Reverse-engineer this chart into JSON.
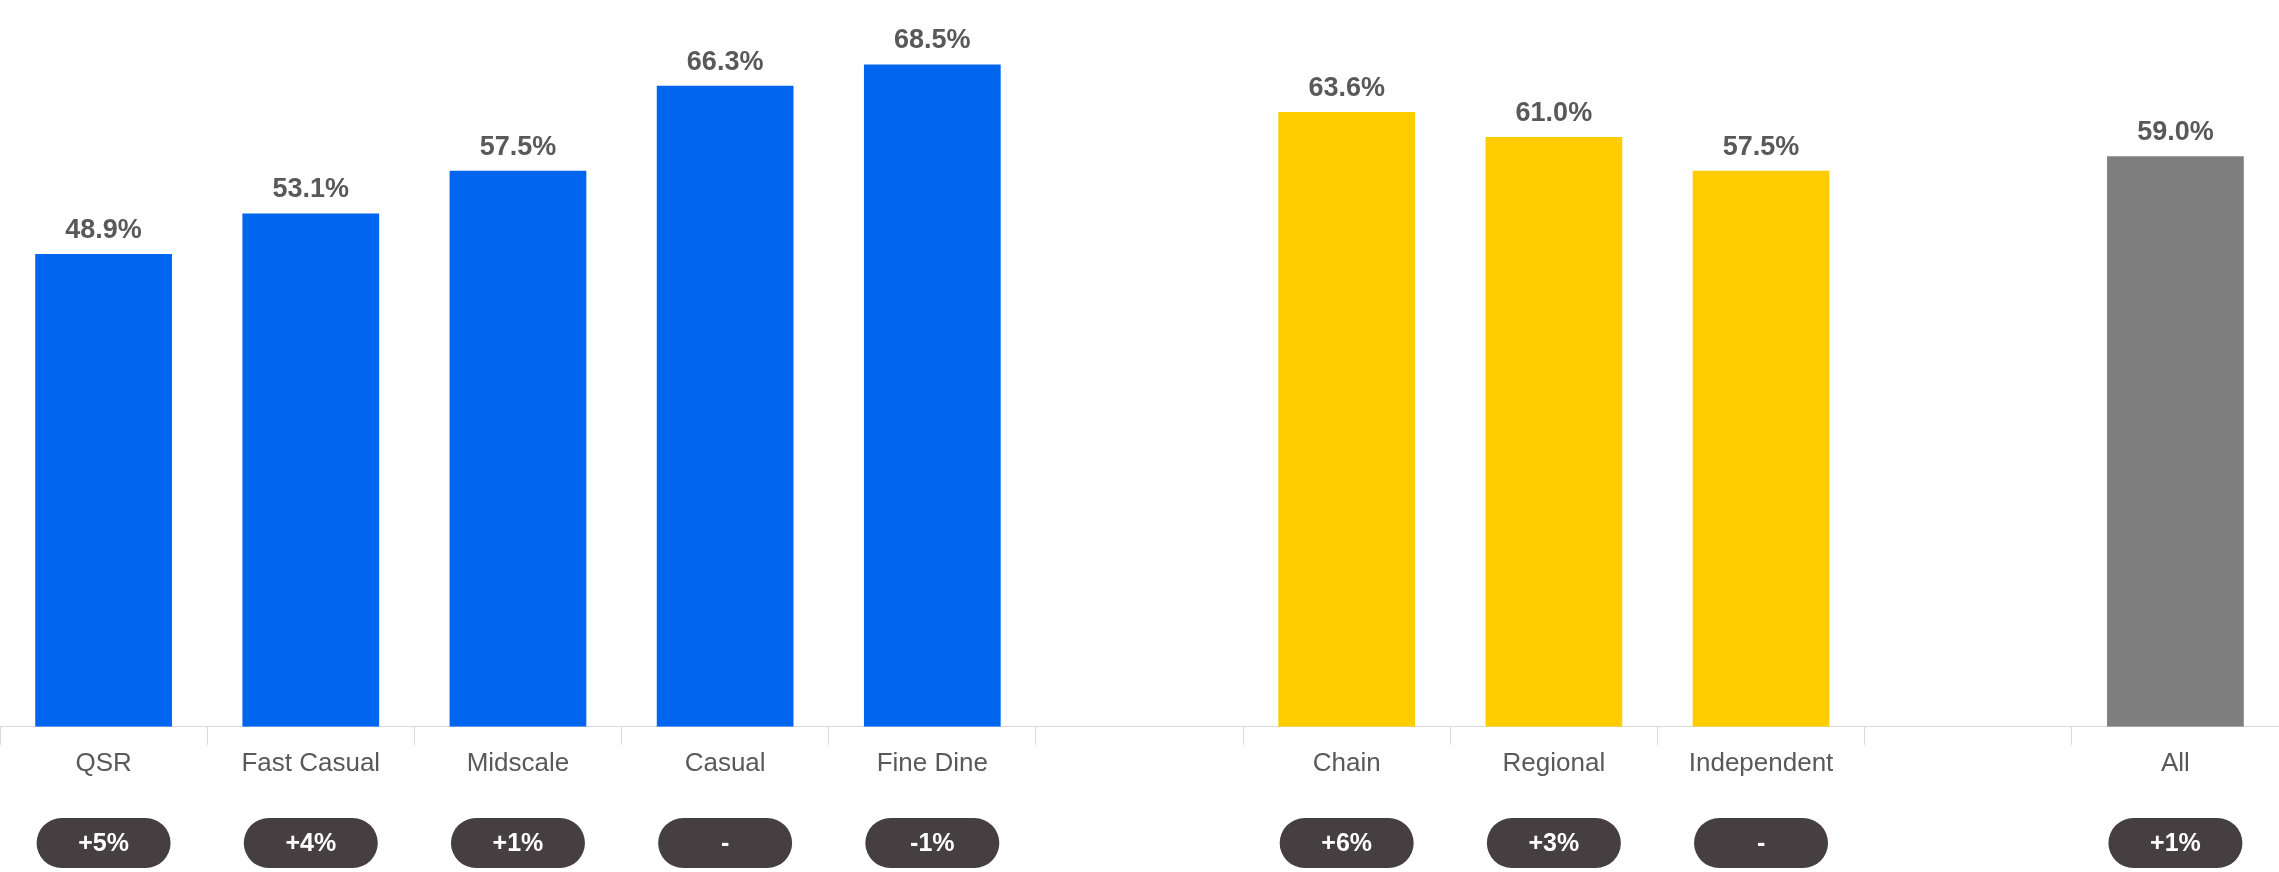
{
  "chart_data": {
    "type": "bar",
    "categories": [
      "QSR",
      "Fast Casual",
      "Midscale",
      "Casual",
      "Fine Dine",
      null,
      "Chain",
      "Regional",
      "Independent",
      null,
      "All"
    ],
    "values": [
      48.9,
      53.1,
      57.5,
      66.3,
      68.5,
      null,
      63.6,
      61.0,
      57.5,
      null,
      59.0
    ],
    "colors": [
      "#0066f0",
      "#0066f0",
      "#0066f0",
      "#0066f0",
      "#0066f0",
      null,
      "#ffcc00",
      "#ffcc00",
      "#ffcc00",
      null,
      "#7f7f7f"
    ],
    "value_labels": [
      "48.9%",
      "53.1%",
      "57.5%",
      "66.3%",
      "68.5%",
      null,
      "63.6%",
      "61.0%",
      "57.5%",
      null,
      "59.0%"
    ],
    "annotations": [
      "+5%",
      "+4%",
      "+1%",
      "-",
      "-1%",
      "+6%",
      "+3%",
      "-",
      "+1%"
    ],
    "grid": false,
    "legend": false
  }
}
